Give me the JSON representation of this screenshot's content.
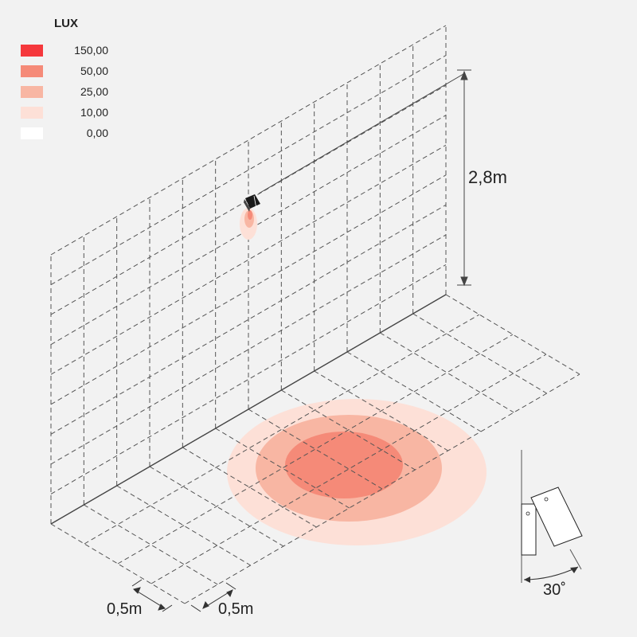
{
  "legend": {
    "title": "LUX",
    "items": [
      {
        "value": "150,00",
        "color": "#f5383c"
      },
      {
        "value": "50,00",
        "color": "#f58a78"
      },
      {
        "value": "25,00",
        "color": "#f8b6a3"
      },
      {
        "value": "10,00",
        "color": "#fde0d7"
      },
      {
        "value": "0,00",
        "color": "#ffffff"
      }
    ]
  },
  "dimensions": {
    "height": "2,8m",
    "grid_x": "0,5m",
    "grid_y": "0,5m",
    "tilt_angle": "30˚"
  },
  "colors": {
    "background": "#f2f2f2",
    "grid_line": "#555555",
    "fixture": "#1a1a1a"
  }
}
